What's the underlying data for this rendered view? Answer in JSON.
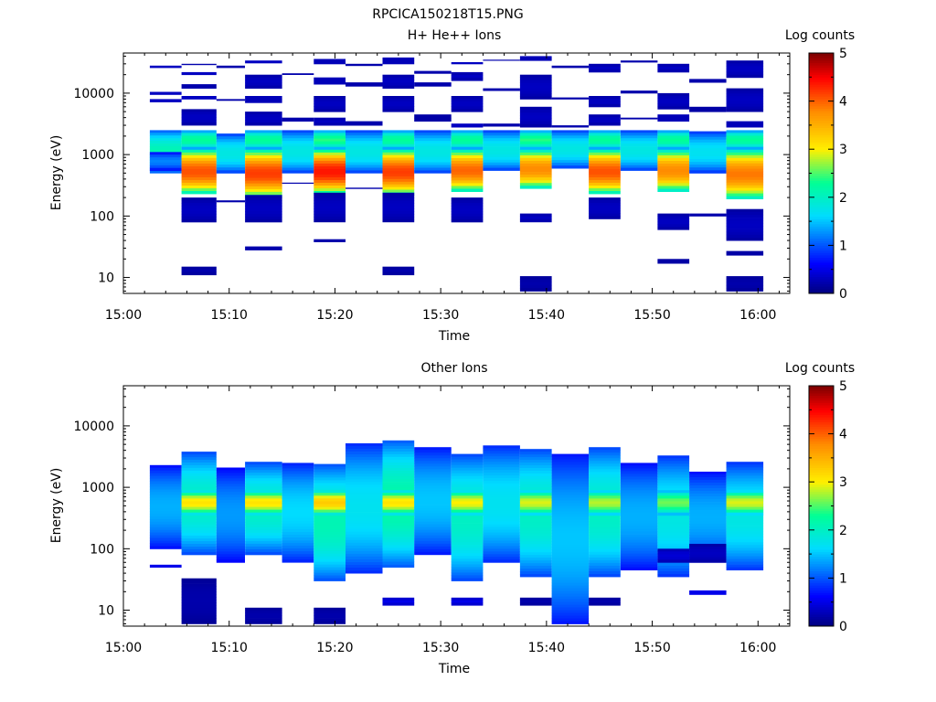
{
  "figure_title": "RPCICA150218T15.PNG",
  "chart_data": [
    {
      "type": "heatmap",
      "title": "H+ He++ Ions",
      "xlabel": "Time",
      "ylabel": "Energy (eV)",
      "colorbar_label": "Log counts",
      "colorbar_ticks": [
        "0",
        "1",
        "2",
        "3",
        "4",
        "5"
      ],
      "color_range": [
        0,
        5
      ],
      "colormap": "rainbow (dark blue to dark red)",
      "x_ticks": [
        "15:00",
        "15:10",
        "15:20",
        "15:30",
        "15:40",
        "15:50",
        "16:00"
      ],
      "x_range_minutes": [
        0,
        63
      ],
      "y_ticks": [
        "10",
        "100",
        "1000",
        "10000"
      ],
      "y_scale": "log",
      "y_range": [
        5.5,
        45000
      ],
      "columns": [
        {
          "t_start": 2.5,
          "t_end": 5.5,
          "bands": [
            [
              2500,
              500,
              2.1
            ],
            [
              1100,
              550,
              1.2
            ],
            [
              28000,
              26000,
              0.3
            ],
            [
              10500,
              9500,
              0.3
            ],
            [
              8000,
              7200,
              0.3
            ]
          ]
        },
        {
          "t_start": 5.5,
          "t_end": 8.8,
          "bands": [
            [
              2500,
              1200,
              2.3
            ],
            [
              1200,
              230,
              4.1
            ],
            [
              30000,
              29000,
              0.2
            ],
            [
              22000,
              20000,
              0.3
            ],
            [
              14000,
              12000,
              0.2
            ],
            [
              9000,
              8000,
              0.3
            ],
            [
              5500,
              3000,
              0.3
            ],
            [
              200,
              80,
              0.3
            ],
            [
              15,
              11,
              0.2
            ]
          ]
        },
        {
          "t_start": 8.8,
          "t_end": 11.5,
          "bands": [
            [
              2200,
              500,
              1.8
            ],
            [
              28000,
              26000,
              0.2
            ],
            [
              8000,
              7600,
              0.2
            ],
            [
              180,
              170,
              0.2
            ]
          ]
        },
        {
          "t_start": 11.5,
          "t_end": 15.0,
          "bands": [
            [
              2500,
              1200,
              2.3
            ],
            [
              1200,
              200,
              4.2
            ],
            [
              34000,
              31000,
              0.3
            ],
            [
              20000,
              12000,
              0.3
            ],
            [
              9000,
              7000,
              0.3
            ],
            [
              5000,
              3000,
              0.3
            ],
            [
              220,
              80,
              0.3
            ],
            [
              32,
              28,
              0.2
            ]
          ]
        },
        {
          "t_start": 15.0,
          "t_end": 18.0,
          "bands": [
            [
              2500,
              500,
              1.8
            ],
            [
              21000,
              20000,
              0.2
            ],
            [
              4000,
              3500,
              0.2
            ],
            [
              350,
              340,
              0.2
            ]
          ]
        },
        {
          "t_start": 18.0,
          "t_end": 21.0,
          "bands": [
            [
              2500,
              1200,
              2.4
            ],
            [
              1200,
              230,
              4.4
            ],
            [
              36000,
              30000,
              0.3
            ],
            [
              18000,
              14000,
              0.3
            ],
            [
              9000,
              5000,
              0.3
            ],
            [
              4000,
              3000,
              0.3
            ],
            [
              240,
              80,
              0.3
            ],
            [
              42,
              38,
              0.2
            ]
          ]
        },
        {
          "t_start": 21.0,
          "t_end": 24.5,
          "bands": [
            [
              2500,
              500,
              1.8
            ],
            [
              30000,
              28000,
              0.2
            ],
            [
              15000,
              13000,
              0.2
            ],
            [
              3500,
              3000,
              0.2
            ],
            [
              290,
              280,
              0.2
            ]
          ]
        },
        {
          "t_start": 24.5,
          "t_end": 27.5,
          "bands": [
            [
              2500,
              1200,
              2.3
            ],
            [
              1200,
              220,
              4.2
            ],
            [
              38000,
              30000,
              0.3
            ],
            [
              20000,
              12000,
              0.3
            ],
            [
              9000,
              5000,
              0.3
            ],
            [
              240,
              80,
              0.3
            ],
            [
              15,
              11,
              0.2
            ]
          ]
        },
        {
          "t_start": 27.5,
          "t_end": 31.0,
          "bands": [
            [
              2500,
              500,
              1.8
            ],
            [
              23000,
              21000,
              0.2
            ],
            [
              15000,
              13000,
              0.2
            ],
            [
              4500,
              3500,
              0.2
            ]
          ]
        },
        {
          "t_start": 31.0,
          "t_end": 34.0,
          "bands": [
            [
              2500,
              1200,
              2.3
            ],
            [
              1200,
              250,
              4.0
            ],
            [
              32000,
              30000,
              0.3
            ],
            [
              22000,
              16000,
              0.3
            ],
            [
              9000,
              5000,
              0.3
            ],
            [
              3200,
              2800,
              0.3
            ],
            [
              200,
              80,
              0.3
            ]
          ]
        },
        {
          "t_start": 34.0,
          "t_end": 37.5,
          "bands": [
            [
              2500,
              550,
              1.8
            ],
            [
              35000,
              34000,
              0.2
            ],
            [
              12000,
              11000,
              0.2
            ],
            [
              3200,
              2900,
              0.2
            ]
          ]
        },
        {
          "t_start": 37.5,
          "t_end": 40.5,
          "bands": [
            [
              2500,
              1200,
              2.4
            ],
            [
              1200,
              280,
              3.8
            ],
            [
              40000,
              34000,
              0.3
            ],
            [
              20000,
              8000,
              0.3
            ],
            [
              6000,
              2800,
              0.3
            ],
            [
              110,
              80,
              0.3
            ],
            [
              10.5,
              6,
              0.2
            ]
          ]
        },
        {
          "t_start": 40.5,
          "t_end": 44.0,
          "bands": [
            [
              2500,
              600,
              1.8
            ],
            [
              28000,
              26000,
              0.2
            ],
            [
              8500,
              8000,
              0.2
            ],
            [
              3000,
              2800,
              0.2
            ]
          ]
        },
        {
          "t_start": 44.0,
          "t_end": 47.0,
          "bands": [
            [
              2500,
              1200,
              2.3
            ],
            [
              1200,
              230,
              4.1
            ],
            [
              30000,
              22000,
              0.3
            ],
            [
              9000,
              6000,
              0.3
            ],
            [
              4500,
              3000,
              0.3
            ],
            [
              200,
              90,
              0.3
            ]
          ]
        },
        {
          "t_start": 47.0,
          "t_end": 50.5,
          "bands": [
            [
              2500,
              550,
              1.8
            ],
            [
              34000,
              32000,
              0.2
            ],
            [
              11000,
              10000,
              0.2
            ],
            [
              4000,
              3800,
              0.2
            ]
          ]
        },
        {
          "t_start": 50.5,
          "t_end": 53.5,
          "bands": [
            [
              2500,
              1200,
              2.3
            ],
            [
              1200,
              250,
              3.8
            ],
            [
              30000,
              22000,
              0.3
            ],
            [
              10000,
              5500,
              0.3
            ],
            [
              4500,
              3500,
              0.3
            ],
            [
              110,
              60,
              0.3
            ],
            [
              20,
              17,
              0.2
            ]
          ]
        },
        {
          "t_start": 53.5,
          "t_end": 57.0,
          "bands": [
            [
              2400,
              500,
              1.7
            ],
            [
              17000,
              15000,
              0.2
            ],
            [
              6000,
              5000,
              0.2
            ],
            [
              110,
              100,
              0.2
            ]
          ]
        },
        {
          "t_start": 57.0,
          "t_end": 60.5,
          "bands": [
            [
              2500,
              1200,
              2.3
            ],
            [
              1200,
              190,
              3.9
            ],
            [
              34000,
              18000,
              0.3
            ],
            [
              12000,
              5000,
              0.3
            ],
            [
              3500,
              2800,
              0.3
            ],
            [
              130,
              40,
              0.3
            ],
            [
              27,
              23,
              0.2
            ],
            [
              10.5,
              6,
              0.2
            ]
          ]
        }
      ]
    },
    {
      "type": "heatmap",
      "title": "Other Ions",
      "xlabel": "Time",
      "ylabel": "Energy (eV)",
      "colorbar_label": "Log counts",
      "colorbar_ticks": [
        "0",
        "1",
        "2",
        "3",
        "4",
        "5"
      ],
      "color_range": [
        0,
        5
      ],
      "colormap": "rainbow (dark blue to dark red)",
      "x_ticks": [
        "15:00",
        "15:10",
        "15:20",
        "15:30",
        "15:40",
        "15:50",
        "16:00"
      ],
      "x_range_minutes": [
        0,
        63
      ],
      "y_ticks": [
        "10",
        "100",
        "1000",
        "10000"
      ],
      "y_scale": "log",
      "y_range": [
        5.5,
        45000
      ],
      "columns": [
        {
          "t_start": 2.5,
          "t_end": 5.5,
          "bands": [
            [
              2300,
              100,
              1.4
            ],
            [
              55,
              50,
              0.5
            ]
          ]
        },
        {
          "t_start": 5.5,
          "t_end": 8.8,
          "bands": [
            [
              3800,
              80,
              2.0
            ],
            [
              900,
              350,
              3.1
            ],
            [
              33,
              6,
              0.2
            ]
          ]
        },
        {
          "t_start": 8.8,
          "t_end": 11.5,
          "bands": [
            [
              2100,
              60,
              1.3
            ]
          ]
        },
        {
          "t_start": 11.5,
          "t_end": 15.0,
          "bands": [
            [
              2600,
              80,
              2.0
            ],
            [
              900,
              350,
              3.1
            ],
            [
              11,
              6,
              0.2
            ]
          ]
        },
        {
          "t_start": 15.0,
          "t_end": 18.0,
          "bands": [
            [
              2500,
              60,
              1.6
            ]
          ]
        },
        {
          "t_start": 18.0,
          "t_end": 21.0,
          "bands": [
            [
              2400,
              30,
              2.1
            ],
            [
              900,
              350,
              3.3
            ],
            [
              11,
              6,
              0.2
            ]
          ]
        },
        {
          "t_start": 21.0,
          "t_end": 24.5,
          "bands": [
            [
              5200,
              40,
              1.7
            ]
          ]
        },
        {
          "t_start": 24.5,
          "t_end": 27.5,
          "bands": [
            [
              5800,
              50,
              2.2
            ],
            [
              900,
              350,
              3.1
            ],
            [
              16,
              12,
              0.5
            ]
          ]
        },
        {
          "t_start": 27.5,
          "t_end": 31.0,
          "bands": [
            [
              4500,
              80,
              1.5
            ]
          ]
        },
        {
          "t_start": 31.0,
          "t_end": 34.0,
          "bands": [
            [
              3500,
              30,
              2.0
            ],
            [
              900,
              350,
              3.0
            ],
            [
              16,
              12,
              0.5
            ]
          ]
        },
        {
          "t_start": 34.0,
          "t_end": 37.5,
          "bands": [
            [
              4800,
              60,
              1.7
            ]
          ]
        },
        {
          "t_start": 37.5,
          "t_end": 40.5,
          "bands": [
            [
              4200,
              35,
              2.0
            ],
            [
              900,
              350,
              2.9
            ],
            [
              16,
              12,
              0.2
            ]
          ]
        },
        {
          "t_start": 40.5,
          "t_end": 44.0,
          "bands": [
            [
              3500,
              6,
              1.5
            ]
          ]
        },
        {
          "t_start": 44.0,
          "t_end": 47.0,
          "bands": [
            [
              4500,
              35,
              2.0
            ],
            [
              900,
              350,
              2.8
            ],
            [
              16,
              12,
              0.2
            ]
          ]
        },
        {
          "t_start": 47.0,
          "t_end": 50.5,
          "bands": [
            [
              2500,
              45,
              1.4
            ]
          ]
        },
        {
          "t_start": 50.5,
          "t_end": 53.5,
          "bands": [
            [
              3300,
              35,
              1.8
            ],
            [
              900,
              350,
              2.6
            ],
            [
              100,
              60,
              0.4
            ]
          ]
        },
        {
          "t_start": 53.5,
          "t_end": 57.0,
          "bands": [
            [
              1800,
              60,
              1.4
            ],
            [
              120,
              60,
              0.3
            ],
            [
              21,
              18,
              0.5
            ]
          ]
        },
        {
          "t_start": 57.0,
          "t_end": 60.5,
          "bands": [
            [
              2600,
              45,
              1.8
            ],
            [
              900,
              350,
              2.9
            ]
          ]
        }
      ]
    }
  ]
}
